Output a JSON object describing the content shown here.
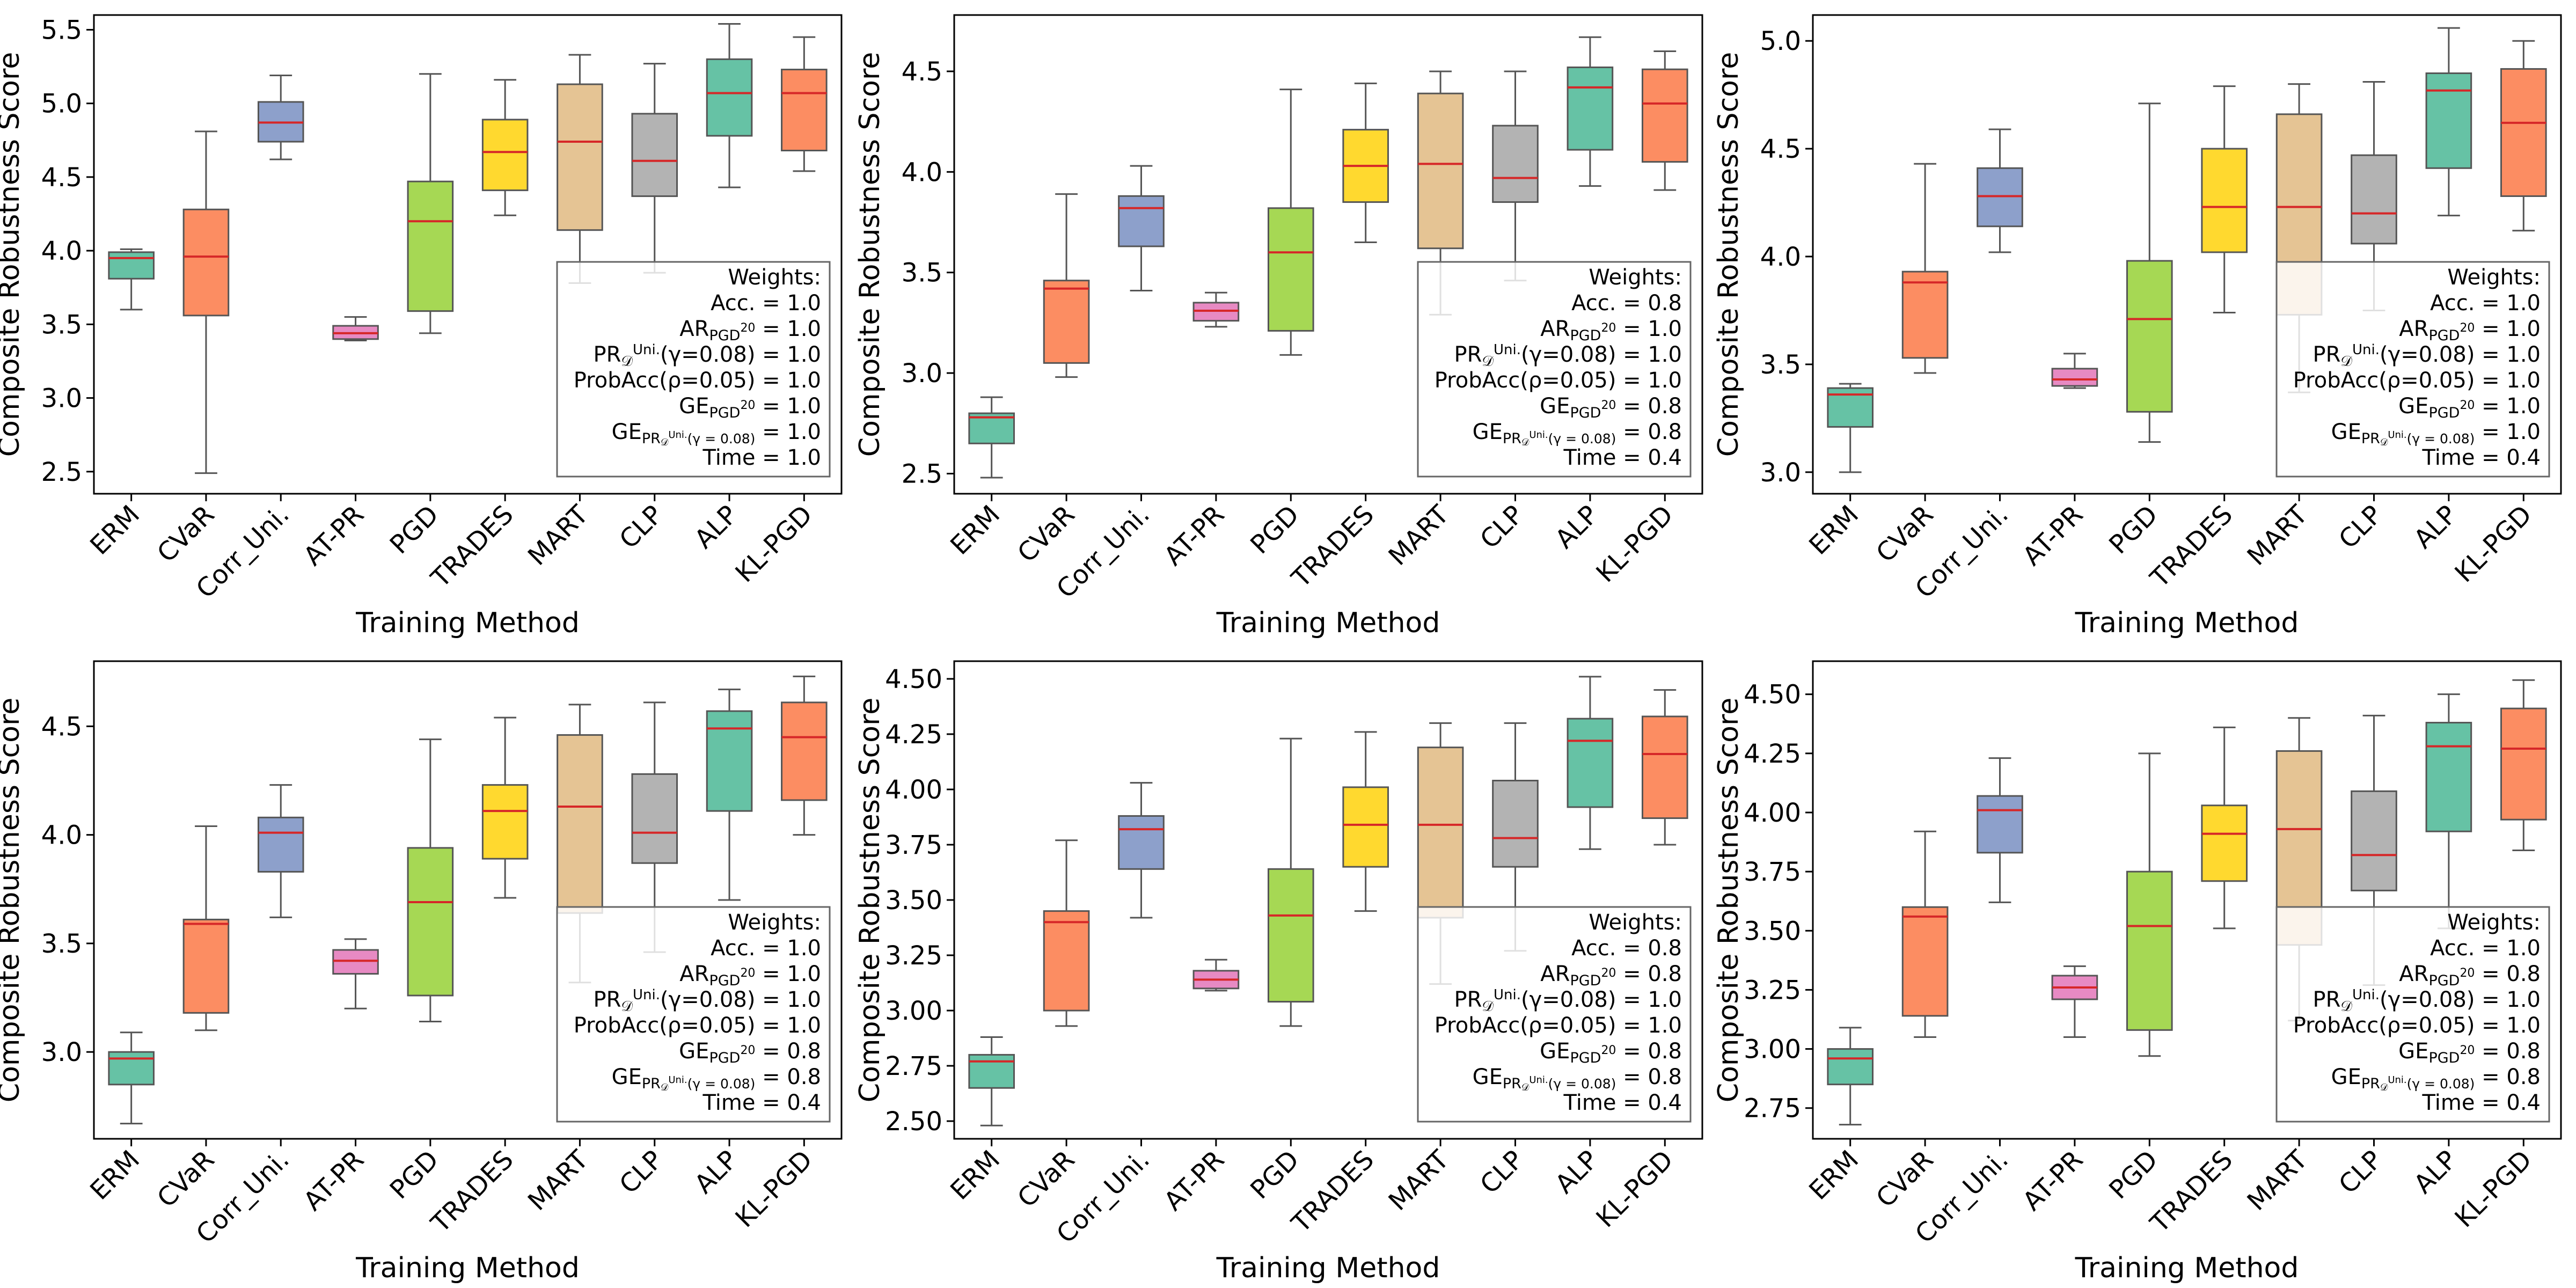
{
  "figure": {
    "categories": [
      "ERM",
      "CVaR",
      "Corr_Uni.",
      "AT-PR",
      "PGD",
      "TRADES",
      "MART",
      "CLP",
      "ALP",
      "KL-PGD"
    ],
    "colors": [
      "#66c2a5",
      "#fc8d62",
      "#8da0cb",
      "#e78ac3",
      "#a6d854",
      "#ffd92f",
      "#e5c494",
      "#b3b3b3",
      "#66c2a5",
      "#fc8d62"
    ],
    "median_color": "#d62728",
    "xlabel": "Training Method",
    "ylabel": "Composite Robustness Score",
    "weights_title": "Weights:",
    "weight_labels": [
      "Acc. = ",
      "AR",
      "PR",
      "ProbAcc(ρ=0.05) = ",
      "GE",
      "GE",
      "Time = "
    ]
  },
  "chart_data": [
    {
      "type": "box",
      "ylim": [
        2.35,
        5.6
      ],
      "yticks": [
        2.5,
        3.0,
        3.5,
        4.0,
        4.5,
        5.0,
        5.5
      ],
      "tick_format": "0.0",
      "weights": [
        "1.0",
        "1.0",
        "1.0",
        "1.0",
        "1.0",
        "1.0",
        "1.0"
      ],
      "boxes": [
        {
          "whislo": 3.6,
          "q1": 3.81,
          "med": 3.95,
          "q3": 3.99,
          "whishi": 4.01
        },
        {
          "whislo": 2.49,
          "q1": 3.56,
          "med": 3.96,
          "q3": 4.28,
          "whishi": 4.81
        },
        {
          "whislo": 4.62,
          "q1": 4.74,
          "med": 4.87,
          "q3": 5.01,
          "whishi": 5.19
        },
        {
          "whislo": 3.39,
          "q1": 3.4,
          "med": 3.44,
          "q3": 3.49,
          "whishi": 3.55
        },
        {
          "whislo": 3.44,
          "q1": 3.59,
          "med": 4.2,
          "q3": 4.47,
          "whishi": 5.2
        },
        {
          "whislo": 4.24,
          "q1": 4.41,
          "med": 4.67,
          "q3": 4.89,
          "whishi": 5.16
        },
        {
          "whislo": 3.78,
          "q1": 4.14,
          "med": 4.74,
          "q3": 5.13,
          "whishi": 5.33
        },
        {
          "whislo": 3.85,
          "q1": 4.37,
          "med": 4.61,
          "q3": 4.93,
          "whishi": 5.27
        },
        {
          "whislo": 4.43,
          "q1": 4.78,
          "med": 5.07,
          "q3": 5.3,
          "whishi": 5.54
        },
        {
          "whislo": 4.54,
          "q1": 4.68,
          "med": 5.07,
          "q3": 5.23,
          "whishi": 5.45
        }
      ]
    },
    {
      "type": "box",
      "ylim": [
        2.4,
        4.78
      ],
      "yticks": [
        2.5,
        3.0,
        3.5,
        4.0,
        4.5
      ],
      "tick_format": "0.0",
      "weights": [
        "0.8",
        "1.0",
        "1.0",
        "1.0",
        "0.8",
        "0.8",
        " 0.4"
      ],
      "boxes": [
        {
          "whislo": 2.48,
          "q1": 2.65,
          "med": 2.78,
          "q3": 2.8,
          "whishi": 2.88
        },
        {
          "whislo": 2.98,
          "q1": 3.05,
          "med": 3.42,
          "q3": 3.46,
          "whishi": 3.89
        },
        {
          "whislo": 3.41,
          "q1": 3.63,
          "med": 3.82,
          "q3": 3.88,
          "whishi": 4.03
        },
        {
          "whislo": 3.23,
          "q1": 3.26,
          "med": 3.31,
          "q3": 3.35,
          "whishi": 3.4
        },
        {
          "whislo": 3.09,
          "q1": 3.21,
          "med": 3.6,
          "q3": 3.82,
          "whishi": 4.41
        },
        {
          "whislo": 3.65,
          "q1": 3.85,
          "med": 4.03,
          "q3": 4.21,
          "whishi": 4.44
        },
        {
          "whislo": 3.29,
          "q1": 3.62,
          "med": 4.04,
          "q3": 4.39,
          "whishi": 4.5
        },
        {
          "whislo": 3.46,
          "q1": 3.85,
          "med": 3.97,
          "q3": 4.23,
          "whishi": 4.5
        },
        {
          "whislo": 3.93,
          "q1": 4.11,
          "med": 4.42,
          "q3": 4.52,
          "whishi": 4.67
        },
        {
          "whislo": 3.91,
          "q1": 4.05,
          "med": 4.34,
          "q3": 4.51,
          "whishi": 4.6
        }
      ]
    },
    {
      "type": "box",
      "ylim": [
        2.9,
        5.12
      ],
      "yticks": [
        3.0,
        3.5,
        4.0,
        4.5,
        5.0
      ],
      "tick_format": "0.0",
      "weights": [
        "1.0",
        "1.0",
        "1.0",
        "1.0",
        "1.0",
        "1.0",
        " 0.4"
      ],
      "boxes": [
        {
          "whislo": 3.0,
          "q1": 3.21,
          "med": 3.36,
          "q3": 3.39,
          "whishi": 3.41
        },
        {
          "whislo": 3.46,
          "q1": 3.53,
          "med": 3.88,
          "q3": 3.93,
          "whishi": 4.43
        },
        {
          "whislo": 4.02,
          "q1": 4.14,
          "med": 4.28,
          "q3": 4.41,
          "whishi": 4.59
        },
        {
          "whislo": 3.39,
          "q1": 3.4,
          "med": 3.43,
          "q3": 3.48,
          "whishi": 3.55
        },
        {
          "whislo": 3.14,
          "q1": 3.28,
          "med": 3.71,
          "q3": 3.98,
          "whishi": 4.71
        },
        {
          "whislo": 3.74,
          "q1": 4.02,
          "med": 4.23,
          "q3": 4.5,
          "whishi": 4.79
        },
        {
          "whislo": 3.37,
          "q1": 3.73,
          "med": 4.23,
          "q3": 4.66,
          "whishi": 4.8
        },
        {
          "whislo": 3.75,
          "q1": 4.06,
          "med": 4.2,
          "q3": 4.47,
          "whishi": 4.81
        },
        {
          "whislo": 4.19,
          "q1": 4.41,
          "med": 4.77,
          "q3": 4.85,
          "whishi": 5.06
        },
        {
          "whislo": 4.12,
          "q1": 4.28,
          "med": 4.62,
          "q3": 4.87,
          "whishi": 5.0
        }
      ]
    },
    {
      "type": "box",
      "ylim": [
        2.6,
        4.8
      ],
      "yticks": [
        3.0,
        3.5,
        4.0,
        4.5
      ],
      "tick_format": "0.0",
      "weights": [
        "1.0",
        "1.0",
        "1.0",
        "1.0",
        "0.8",
        "0.8",
        " 0.4"
      ],
      "boxes": [
        {
          "whislo": 2.67,
          "q1": 2.85,
          "med": 2.97,
          "q3": 3.0,
          "whishi": 3.09
        },
        {
          "whislo": 3.1,
          "q1": 3.18,
          "med": 3.59,
          "q3": 3.61,
          "whishi": 4.04
        },
        {
          "whislo": 3.62,
          "q1": 3.83,
          "med": 4.01,
          "q3": 4.08,
          "whishi": 4.23
        },
        {
          "whislo": 3.2,
          "q1": 3.36,
          "med": 3.42,
          "q3": 3.47,
          "whishi": 3.52
        },
        {
          "whislo": 3.14,
          "q1": 3.26,
          "med": 3.69,
          "q3": 3.94,
          "whishi": 4.44
        },
        {
          "whislo": 3.71,
          "q1": 3.89,
          "med": 4.11,
          "q3": 4.23,
          "whishi": 4.54
        },
        {
          "whislo": 3.32,
          "q1": 3.64,
          "med": 4.13,
          "q3": 4.46,
          "whishi": 4.6
        },
        {
          "whislo": 3.46,
          "q1": 3.87,
          "med": 4.01,
          "q3": 4.28,
          "whishi": 4.61
        },
        {
          "whislo": 3.7,
          "q1": 4.11,
          "med": 4.49,
          "q3": 4.57,
          "whishi": 4.67
        },
        {
          "whislo": 4.0,
          "q1": 4.16,
          "med": 4.45,
          "q3": 4.61,
          "whishi": 4.73
        }
      ]
    },
    {
      "type": "box",
      "ylim": [
        2.42,
        4.58
      ],
      "yticks": [
        2.5,
        2.75,
        3.0,
        3.25,
        3.5,
        3.75,
        4.0,
        4.25,
        4.5
      ],
      "tick_format": "0.00",
      "weights": [
        "0.8",
        "0.8",
        "1.0",
        "1.0",
        "0.8",
        "0.8",
        " 0.4"
      ],
      "boxes": [
        {
          "whislo": 2.48,
          "q1": 2.65,
          "med": 2.77,
          "q3": 2.8,
          "whishi": 2.88
        },
        {
          "whislo": 2.93,
          "q1": 3.0,
          "med": 3.4,
          "q3": 3.45,
          "whishi": 3.77
        },
        {
          "whislo": 3.42,
          "q1": 3.64,
          "med": 3.82,
          "q3": 3.88,
          "whishi": 4.03
        },
        {
          "whislo": 3.09,
          "q1": 3.1,
          "med": 3.14,
          "q3": 3.18,
          "whishi": 3.23
        },
        {
          "whislo": 2.93,
          "q1": 3.04,
          "med": 3.43,
          "q3": 3.64,
          "whishi": 4.23
        },
        {
          "whislo": 3.45,
          "q1": 3.65,
          "med": 3.84,
          "q3": 4.01,
          "whishi": 4.26
        },
        {
          "whislo": 3.12,
          "q1": 3.42,
          "med": 3.84,
          "q3": 4.19,
          "whishi": 4.3
        },
        {
          "whislo": 3.27,
          "q1": 3.65,
          "med": 3.78,
          "q3": 4.04,
          "whishi": 4.3
        },
        {
          "whislo": 3.73,
          "q1": 3.92,
          "med": 4.22,
          "q3": 4.32,
          "whishi": 4.51
        },
        {
          "whislo": 3.75,
          "q1": 3.87,
          "med": 4.16,
          "q3": 4.33,
          "whishi": 4.45
        }
      ]
    },
    {
      "type": "box",
      "ylim": [
        2.62,
        4.64
      ],
      "yticks": [
        2.75,
        3.0,
        3.25,
        3.5,
        3.75,
        4.0,
        4.25,
        4.5
      ],
      "tick_format": "0.00",
      "weights": [
        "1.0",
        "0.8",
        "1.0",
        "1.0",
        "0.8",
        "0.8",
        " 0.4"
      ],
      "boxes": [
        {
          "whislo": 2.68,
          "q1": 2.85,
          "med": 2.96,
          "q3": 3.0,
          "whishi": 3.09
        },
        {
          "whislo": 3.05,
          "q1": 3.14,
          "med": 3.56,
          "q3": 3.6,
          "whishi": 3.92
        },
        {
          "whislo": 3.62,
          "q1": 3.83,
          "med": 4.01,
          "q3": 4.07,
          "whishi": 4.23
        },
        {
          "whislo": 3.05,
          "q1": 3.21,
          "med": 3.26,
          "q3": 3.31,
          "whishi": 3.35
        },
        {
          "whislo": 2.97,
          "q1": 3.08,
          "med": 3.52,
          "q3": 3.75,
          "whishi": 4.25
        },
        {
          "whislo": 3.51,
          "q1": 3.71,
          "med": 3.91,
          "q3": 4.03,
          "whishi": 4.36
        },
        {
          "whislo": 3.12,
          "q1": 3.44,
          "med": 3.93,
          "q3": 4.26,
          "whishi": 4.4
        },
        {
          "whislo": 3.27,
          "q1": 3.67,
          "med": 3.82,
          "q3": 4.09,
          "whishi": 4.41
        },
        {
          "whislo": 3.51,
          "q1": 3.92,
          "med": 4.28,
          "q3": 4.38,
          "whishi": 4.5
        },
        {
          "whislo": 3.84,
          "q1": 3.97,
          "med": 4.27,
          "q3": 4.44,
          "whishi": 4.56
        }
      ]
    }
  ]
}
